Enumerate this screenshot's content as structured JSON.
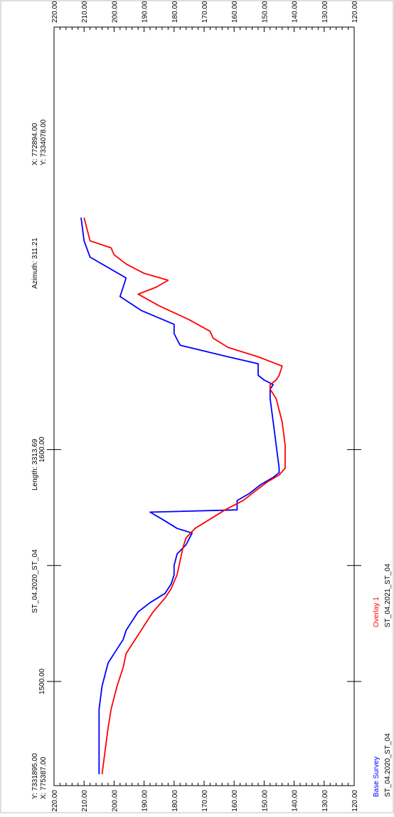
{
  "chart_data": {
    "type": "line",
    "orientation": "rotated-90-clockwise",
    "title": "",
    "xlabel": "",
    "ylabel": "",
    "xlim": [
      1460,
      1780
    ],
    "ylim": [
      120,
      220
    ],
    "x_ticks_labeled": [
      "1500.00",
      "1600.00"
    ],
    "y_ticks": [
      "120.00",
      "130.00",
      "140.00",
      "150.00",
      "160.00",
      "170.00",
      "180.00",
      "190.00",
      "200.00",
      "210.00",
      "220.00"
    ],
    "grid": false,
    "series": [
      {
        "name": "Base Survey",
        "color": "#0000ff",
        "points": [
          [
            1460,
            205
          ],
          [
            1468,
            205
          ],
          [
            1478,
            205
          ],
          [
            1488,
            205
          ],
          [
            1498,
            204
          ],
          [
            1508,
            202
          ],
          [
            1514,
            199
          ],
          [
            1518,
            197
          ],
          [
            1522,
            196
          ],
          [
            1526,
            194
          ],
          [
            1530,
            192
          ],
          [
            1534,
            188
          ],
          [
            1538,
            183
          ],
          [
            1542,
            181
          ],
          [
            1546,
            180
          ],
          [
            1550,
            180
          ],
          [
            1555,
            179
          ],
          [
            1559,
            176
          ],
          [
            1564,
            174
          ],
          [
            1566,
            179
          ],
          [
            1570,
            184
          ],
          [
            1573,
            188
          ],
          [
            1574,
            159
          ],
          [
            1578,
            159
          ],
          [
            1581,
            155
          ],
          [
            1585,
            151
          ],
          [
            1588,
            147
          ],
          [
            1590,
            145
          ],
          [
            1592,
            145
          ],
          [
            1602,
            146
          ],
          [
            1612,
            147
          ],
          [
            1622,
            148
          ],
          [
            1626,
            148
          ],
          [
            1628,
            147
          ],
          [
            1630,
            150
          ],
          [
            1632,
            152
          ],
          [
            1634,
            152
          ],
          [
            1637,
            152
          ],
          [
            1640,
            162
          ],
          [
            1645,
            178
          ],
          [
            1650,
            180
          ],
          [
            1654,
            180
          ],
          [
            1660,
            191
          ],
          [
            1666,
            198
          ],
          [
            1670,
            197
          ],
          [
            1674,
            196
          ],
          [
            1683,
            208
          ],
          [
            1690,
            210
          ],
          [
            1700,
            211
          ]
        ]
      },
      {
        "name": "Overlay 1",
        "color": "#ff0000",
        "points": [
          [
            1460,
            204
          ],
          [
            1470,
            203
          ],
          [
            1480,
            202
          ],
          [
            1488,
            201
          ],
          [
            1498,
            199
          ],
          [
            1506,
            197
          ],
          [
            1512,
            196
          ],
          [
            1516,
            194
          ],
          [
            1520,
            192
          ],
          [
            1526,
            189
          ],
          [
            1530,
            187
          ],
          [
            1536,
            183
          ],
          [
            1540,
            181
          ],
          [
            1546,
            179
          ],
          [
            1552,
            178
          ],
          [
            1558,
            177
          ],
          [
            1562,
            176
          ],
          [
            1566,
            173
          ],
          [
            1570,
            168
          ],
          [
            1574,
            163
          ],
          [
            1578,
            157
          ],
          [
            1582,
            153
          ],
          [
            1586,
            149
          ],
          [
            1589,
            145
          ],
          [
            1592,
            143
          ],
          [
            1602,
            143
          ],
          [
            1612,
            144
          ],
          [
            1622,
            146
          ],
          [
            1626,
            148
          ],
          [
            1628,
            148
          ],
          [
            1630,
            146
          ],
          [
            1632,
            145
          ],
          [
            1636,
            144
          ],
          [
            1640,
            152
          ],
          [
            1644,
            162
          ],
          [
            1648,
            167
          ],
          [
            1651,
            168
          ],
          [
            1656,
            175
          ],
          [
            1662,
            185
          ],
          [
            1667,
            192
          ],
          [
            1670,
            186
          ],
          [
            1673,
            182
          ],
          [
            1676,
            190
          ],
          [
            1680,
            196
          ],
          [
            1684,
            200
          ],
          [
            1687,
            201
          ],
          [
            1690,
            208
          ],
          [
            1700,
            210
          ]
        ]
      }
    ]
  },
  "header_left": {
    "end_x": "X: 775387.00",
    "end_y": "Y: 7331895.00",
    "section": "ST_04.2020_ST_04",
    "length": "Length: 3313.69",
    "azimuth": "Azimuth: 311.21",
    "start_x": "X: 772894.00",
    "start_y": "Y: 7334078.00"
  },
  "legend": {
    "base_label": "Base Survey",
    "base_id": "ST_04.2020_ST_04",
    "base_color": "#0000ff",
    "overlay_label": "Overlay 1",
    "overlay_id": "ST_04.2021_ST_04",
    "overlay_color": "#ff0000"
  }
}
